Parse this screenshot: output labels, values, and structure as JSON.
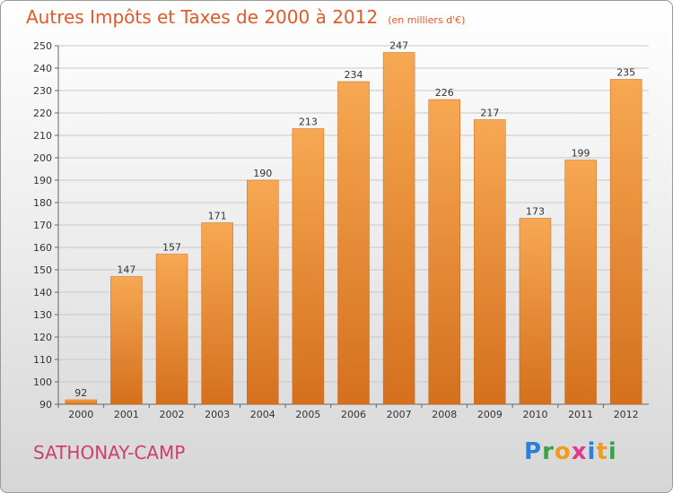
{
  "title": "Autres Impôts et Taxes de 2000 à 2012",
  "unit_note": "(en milliers d'€)",
  "commune": "SATHONAY-CAMP",
  "logo": {
    "text": "Proxiti",
    "letters": [
      {
        "char": "P",
        "color": "#2e7fd6"
      },
      {
        "char": "r",
        "color": "#3aa24a"
      },
      {
        "char": "o",
        "color": "#f39c1c"
      },
      {
        "char": "x",
        "color": "#e03a8a"
      },
      {
        "char": "i",
        "color": "#2e7fd6"
      },
      {
        "char": "t",
        "color": "#f39c1c"
      },
      {
        "char": "i",
        "color": "#3aa24a"
      }
    ]
  },
  "colors": {
    "bar_top": "#f7a852",
    "bar_bottom": "#d4701e",
    "grid": "#c8c8c8",
    "text": "#333333"
  },
  "chart_data": {
    "type": "bar",
    "categories": [
      "2000",
      "2001",
      "2002",
      "2003",
      "2004",
      "2005",
      "2006",
      "2007",
      "2008",
      "2009",
      "2010",
      "2011",
      "2012"
    ],
    "values": [
      92,
      147,
      157,
      171,
      190,
      213,
      234,
      247,
      226,
      217,
      173,
      199,
      235
    ],
    "data_labels": [
      "92",
      "147",
      "157",
      "171",
      "190",
      "213",
      "234",
      "247",
      "226",
      "217",
      "173",
      "199",
      "235"
    ],
    "yticks": [
      "90",
      "100",
      "110",
      "120",
      "130",
      "140",
      "150",
      "160",
      "170",
      "180",
      "190",
      "200",
      "210",
      "220",
      "230",
      "240",
      "250"
    ],
    "ylim": [
      90,
      250
    ],
    "grid": true,
    "legend": "none"
  }
}
